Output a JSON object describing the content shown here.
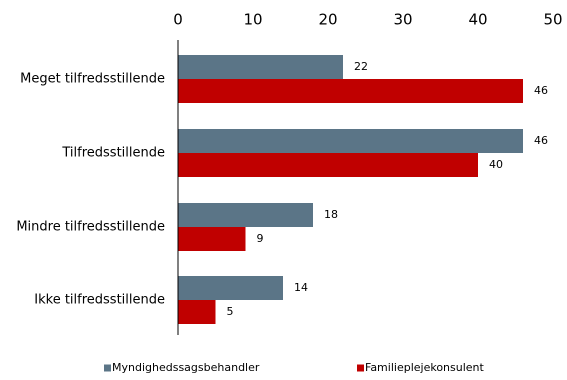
{
  "chart_data": {
    "type": "bar",
    "orientation": "horizontal",
    "title": "",
    "xlabel": "",
    "ylabel": "",
    "xlim": [
      0,
      50
    ],
    "x_ticks": [
      "0",
      "10",
      "20",
      "30",
      "40",
      "50"
    ],
    "x_axis_position": "top",
    "grid": false,
    "legend_position": "bottom",
    "categories": [
      "Meget tilfredsstillende",
      "Tilfredsstillende",
      "Mindre tilfredsstillende",
      "Ikke tilfredsstillende"
    ],
    "series": [
      {
        "name": "Myndighedssagsbehandler",
        "color": "#5b7587",
        "values": [
          22,
          46,
          18,
          14
        ]
      },
      {
        "name": "Familieplejekonsulent",
        "color": "#c00000",
        "values": [
          46,
          40,
          9,
          5
        ]
      }
    ]
  }
}
